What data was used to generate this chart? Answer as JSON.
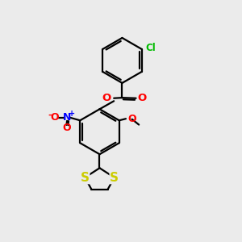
{
  "background_color": "#ebebeb",
  "bond_color": "#000000",
  "atom_colors": {
    "O": "#ff0000",
    "N": "#0000ff",
    "S": "#cccc00",
    "Cl": "#00bb00",
    "C": "#000000"
  },
  "figsize": [
    3.0,
    3.0
  ],
  "dpi": 100
}
